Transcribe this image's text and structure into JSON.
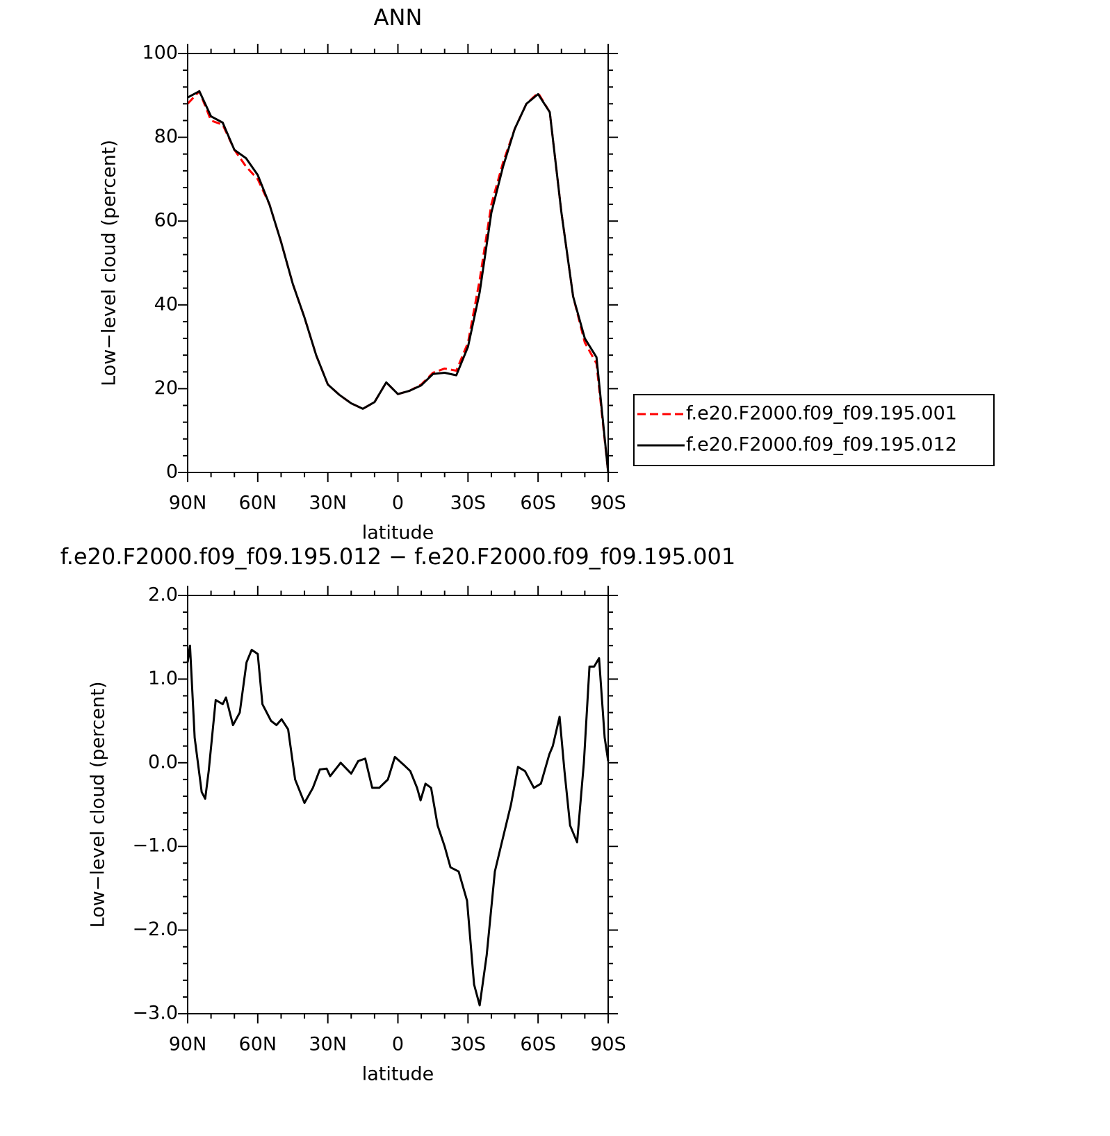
{
  "chart_data": [
    {
      "type": "line",
      "title": "ANN",
      "x_label": "latitude",
      "y_label": "Low−level cloud (percent)",
      "xlim": [
        90,
        -90
      ],
      "ylim": [
        0,
        100
      ],
      "xticks": [
        {
          "value": 90,
          "label": "90N"
        },
        {
          "value": 60,
          "label": "60N"
        },
        {
          "value": 30,
          "label": "30N"
        },
        0,
        {
          "value": -30,
          "label": "30S"
        },
        {
          "value": -60,
          "label": "60S"
        },
        {
          "value": -90,
          "label": "90S"
        }
      ],
      "yticks": [
        0,
        20,
        40,
        60,
        80,
        100
      ],
      "x": [
        90,
        85,
        80,
        75,
        70,
        65,
        60,
        55,
        50,
        45,
        40,
        35,
        30,
        25,
        20,
        15,
        10,
        5,
        0,
        -5,
        -10,
        -15,
        -20,
        -25,
        -30,
        -35,
        -40,
        -45,
        -50,
        -55,
        -60,
        -65,
        -70,
        -75,
        -80,
        -85,
        -90
      ],
      "series": [
        {
          "name": "f.e20.F2000.f09_f09.195.001",
          "color": "#ff0000",
          "dash": "dashed",
          "values": [
            88,
            91,
            84,
            83,
            77,
            73,
            70,
            64,
            55,
            45,
            37,
            28,
            21,
            18.5,
            16.5,
            15.2,
            16.8,
            21.5,
            18.7,
            19.5,
            21,
            23.8,
            24.8,
            24.3,
            31,
            46,
            64,
            74,
            82,
            88,
            90.6,
            86,
            62,
            42,
            31,
            26,
            0
          ]
        },
        {
          "name": "f.e20.F2000.f09_f09.195.012",
          "color": "#000000",
          "dash": "solid",
          "values": [
            89.5,
            91,
            85,
            83.5,
            77,
            75,
            71,
            64,
            55,
            45,
            37,
            28,
            21,
            18.5,
            16.5,
            15.2,
            16.8,
            21.5,
            18.7,
            19.5,
            20.8,
            23.5,
            23.8,
            23.2,
            30,
            43,
            62,
            73,
            82,
            88,
            90.3,
            86,
            62,
            42,
            32,
            27.5,
            0
          ]
        }
      ]
    },
    {
      "type": "line",
      "title": "f.e20.F2000.f09_f09.195.012 − f.e20.F2000.f09_f09.195.001",
      "x_label": "latitude",
      "y_label": "Low−level cloud (percent)",
      "xlim": [
        90,
        -90
      ],
      "ylim": [
        -3,
        2
      ],
      "xticks": [
        {
          "value": 90,
          "label": "90N"
        },
        {
          "value": 60,
          "label": "60N"
        },
        {
          "value": 30,
          "label": "30N"
        },
        0,
        {
          "value": -30,
          "label": "30S"
        },
        {
          "value": -60,
          "label": "60S"
        },
        {
          "value": -90,
          "label": "90S"
        }
      ],
      "yticks": [
        {
          "value": -3,
          "label": "−3.0"
        },
        {
          "value": -2,
          "label": "−2.0"
        },
        {
          "value": -1,
          "label": "−1.0"
        },
        {
          "value": 0,
          "label": "0.0"
        },
        {
          "value": 1,
          "label": "1.0"
        },
        {
          "value": 2,
          "label": "2.0"
        }
      ],
      "x": [
        90,
        89,
        87,
        84,
        82.5,
        81,
        78,
        75,
        73.6,
        70.6,
        67.7,
        64.8,
        62.6,
        60,
        58,
        54.3,
        52,
        49.8,
        47,
        44,
        40,
        36.4,
        33.4,
        30.5,
        29,
        24.5,
        20,
        17,
        14,
        11,
        8,
        4.3,
        1.3,
        -2.3,
        -5.3,
        -8.2,
        -9.7,
        -11.8,
        -14.2,
        -17,
        -20,
        -22.5,
        -26,
        -29.6,
        -32.6,
        -35,
        -38,
        -41.5,
        -44.5,
        -48.4,
        -51.4,
        -54.4,
        -58.2,
        -61.2,
        -64.8,
        -66.3,
        -69.2,
        -71.3,
        -73.7,
        -76.7,
        -79.6,
        -82,
        -84,
        -86.1,
        -88.5,
        -90
      ],
      "series": [
        {
          "color": "#000000",
          "dash": "solid",
          "values": [
            1.2,
            1.4,
            0.3,
            -0.35,
            -0.43,
            -0.1,
            0.75,
            0.7,
            0.78,
            0.45,
            0.6,
            1.2,
            1.35,
            1.3,
            0.7,
            0.5,
            0.45,
            0.52,
            0.4,
            -0.2,
            -0.48,
            -0.3,
            -0.08,
            -0.07,
            -0.16,
            0,
            -0.13,
            0.02,
            0.05,
            -0.3,
            -0.3,
            -0.2,
            0.07,
            -0.02,
            -0.1,
            -0.3,
            -0.45,
            -0.25,
            -0.3,
            -0.75,
            -1,
            -1.25,
            -1.3,
            -1.65,
            -2.65,
            -2.9,
            -2.3,
            -1.3,
            -0.95,
            -0.5,
            -0.05,
            -0.1,
            -0.3,
            -0.25,
            0.1,
            0.2,
            0.55,
            -0.1,
            -0.75,
            -0.95,
            0,
            1.15,
            1.15,
            1.25,
            0.3,
            0.02
          ]
        }
      ]
    }
  ]
}
